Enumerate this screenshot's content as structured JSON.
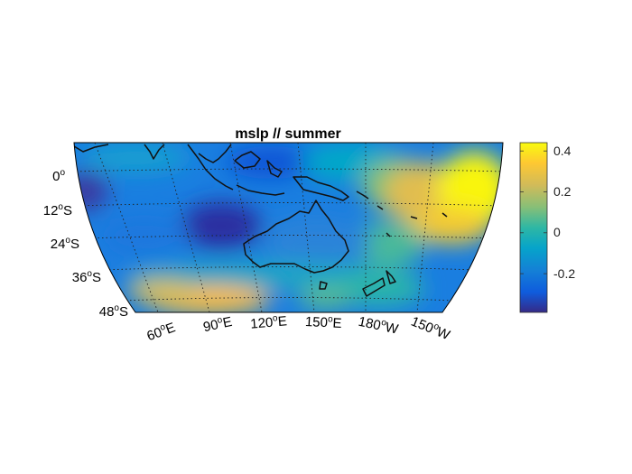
{
  "title": "mslp // summer",
  "latitude_labels": [
    {
      "deg": "0",
      "hemi": ""
    },
    {
      "deg": "12",
      "hemi": "S"
    },
    {
      "deg": "24",
      "hemi": "S"
    },
    {
      "deg": "36",
      "hemi": "S"
    },
    {
      "deg": "48",
      "hemi": "S"
    }
  ],
  "longitude_labels": [
    {
      "deg": "60",
      "hemi": "E"
    },
    {
      "deg": "90",
      "hemi": "E"
    },
    {
      "deg": "120",
      "hemi": "E"
    },
    {
      "deg": "150",
      "hemi": "E"
    },
    {
      "deg": "180",
      "hemi": "W"
    },
    {
      "deg": "150",
      "hemi": "W"
    }
  ],
  "colorbar": {
    "ticks": [
      "0.4",
      "0.2",
      "0",
      "-0.2"
    ],
    "range": [
      -0.38,
      0.45
    ],
    "colormap": [
      "#352a87",
      "#0f5cdd",
      "#1481d6",
      "#06a4ca",
      "#2eb7a4",
      "#87bf77",
      "#d1bb59",
      "#fec832",
      "#f9fb0e"
    ]
  },
  "chart_data": {
    "type": "heatmap",
    "title": "mslp // summer",
    "projection": "curved lat-lon map",
    "extent": {
      "lon": [
        "50E",
        "150W"
      ],
      "lat": [
        "10N",
        "50S"
      ]
    },
    "colorbar_range": [
      -0.38,
      0.45
    ],
    "colorbar_ticks": [
      0.4,
      0.2,
      0,
      -0.2
    ],
    "grid": "dotted graticule"
  }
}
